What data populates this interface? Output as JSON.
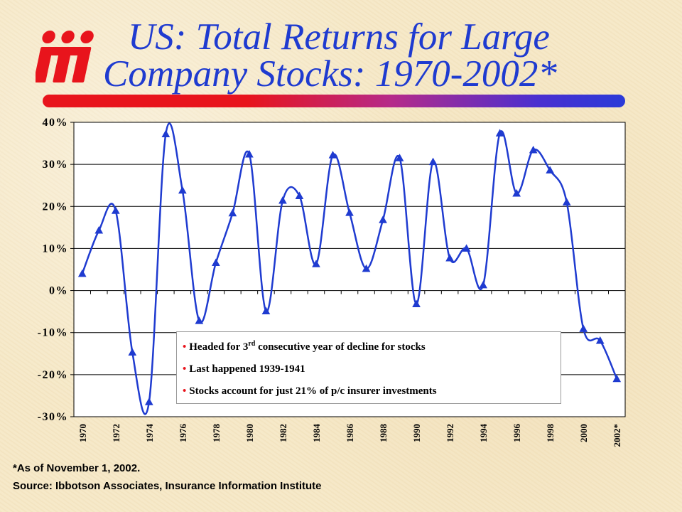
{
  "logo": {
    "text": "iii",
    "color": "#e8141c"
  },
  "title": {
    "line1": "US: Total Returns for Large",
    "line2": "Company Stocks: 1970-2002*",
    "color": "#1f3bd0"
  },
  "annotation": {
    "bullets": [
      {
        "before": "Headed for 3",
        "sup": "rd",
        "after": " consecutive year of decline for stocks"
      },
      {
        "before": "Last happened 1939-1941",
        "sup": "",
        "after": ""
      },
      {
        "before": "Stocks account for just 21% of p/c insurer investments",
        "sup": "",
        "after": ""
      }
    ],
    "bullet_color": "#e8141c"
  },
  "footnote": {
    "as_of": "*As of November 1, 2002.",
    "source": "Source:  Ibbotson Associates, Insurance Information Institute"
  },
  "chart_data": {
    "type": "line",
    "title": "",
    "xlabel": "",
    "ylabel": "",
    "x": [
      "1970",
      "1971",
      "1972",
      "1973",
      "1974",
      "1975",
      "1976",
      "1977",
      "1978",
      "1979",
      "1980",
      "1981",
      "1982",
      "1983",
      "1984",
      "1985",
      "1986",
      "1987",
      "1988",
      "1989",
      "1990",
      "1991",
      "1992",
      "1993",
      "1994",
      "1995",
      "1996",
      "1997",
      "1998",
      "1999",
      "2000",
      "2001",
      "2002*"
    ],
    "x_tick_labels": [
      "1970",
      "1972",
      "1974",
      "1976",
      "1978",
      "1980",
      "1982",
      "1984",
      "1986",
      "1988",
      "1990",
      "1992",
      "1994",
      "1996",
      "1998",
      "2000",
      "2002*"
    ],
    "values": [
      4.0,
      14.3,
      19.0,
      -14.7,
      -26.5,
      37.2,
      23.8,
      -7.2,
      6.6,
      18.4,
      32.4,
      -4.9,
      21.4,
      22.5,
      6.3,
      32.2,
      18.5,
      5.2,
      16.8,
      31.5,
      -3.2,
      30.6,
      7.7,
      10.0,
      1.3,
      37.4,
      23.1,
      33.4,
      28.6,
      21.0,
      -9.1,
      -11.9,
      -21.0
    ],
    "ylim": [
      -30,
      40
    ],
    "y_ticks": [
      40,
      30,
      20,
      10,
      0,
      -10,
      -20,
      -30
    ],
    "y_tick_labels": [
      "40%",
      "30%",
      "20%",
      "10%",
      "0%",
      "-10%",
      "-20%",
      "-30%"
    ],
    "grid": "horizontal",
    "line_color": "#1f3bd0",
    "marker": "triangle",
    "marker_color": "#1f3bd0",
    "plot_background": "#ffffff"
  }
}
